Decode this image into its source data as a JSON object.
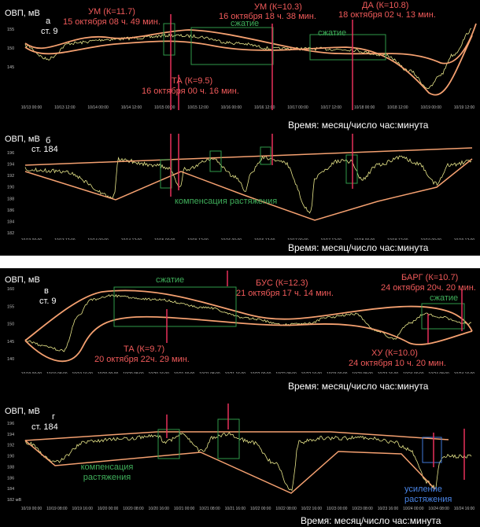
{
  "chart_data": [
    {
      "id": "a",
      "type": "line",
      "panel_letter": "а",
      "station": "ст. 9",
      "ylabel": "ОВП, мВ",
      "xlabel": "Время: месяц/число час:минута",
      "yticks": [
        "155",
        "150",
        "145"
      ],
      "xticks": [
        "10/13 00:00",
        "10/13 12:00",
        "10/14 00:00",
        "10/14 12:00",
        "10/15 00:00",
        "10/15 12:00",
        "10/16 00:00",
        "10/16 12:00",
        "10/17 00:00",
        "10/17 12:00",
        "10/18 00:00",
        "10/18 12:00",
        "10/19 00:00",
        "10/19 12:00"
      ],
      "events": [
        {
          "label": "УМ (К=11.7)",
          "time": "15 октября 08 ч. 49 мин."
        },
        {
          "label": "ТА (К=9.5)",
          "time": "16 октября 00 ч. 16 мин."
        },
        {
          "label": "УМ (К=10.3)",
          "time": "16 октября 18 ч. 38 мин."
        },
        {
          "label": "ДА (К=10.8)",
          "time": "18 октября 02 ч. 13 мин."
        }
      ],
      "annotations": [
        "сжатие",
        "сжатие"
      ]
    },
    {
      "id": "b",
      "type": "line",
      "panel_letter": "б",
      "station": "ст. 184",
      "ylabel": "ОВП, мВ",
      "xlabel": "Время: месяц/число час:минута",
      "yticks": [
        "196",
        "194",
        "192",
        "190",
        "188",
        "186",
        "184",
        "182"
      ],
      "xticks": [
        "10/13 00:00",
        "10/13 12:00",
        "10/14 00:00",
        "10/14 12:00",
        "10/15 00:00",
        "10/15 12:00",
        "10/16 00:00",
        "10/16 12:00",
        "10/17 00:00",
        "10/17 12:00",
        "10/18 00:00",
        "10/18 12:00",
        "10/19 00:00",
        "10/19 12:00"
      ],
      "annotations": [
        "компенсация растяжения"
      ]
    },
    {
      "id": "c",
      "type": "line",
      "panel_letter": "в",
      "station": "ст. 9",
      "ylabel": "ОВП, мВ",
      "xlabel": "Время: месяц/число час:минута",
      "yticks": [
        "160",
        "155",
        "150",
        "145",
        "140"
      ],
      "xticks": [
        "10/19 00:00",
        "10/19 08:00",
        "10/19 16:00",
        "10/20 00:00",
        "10/20 08:00",
        "10/20 16:00",
        "10/21 00:00",
        "10/21 08:00",
        "10/21 16:00",
        "10/22 00:00",
        "10/22 08:00",
        "10/22 16:00",
        "10/23 00:00",
        "10/23 08:00",
        "10/23 16:00",
        "10/24 00:00",
        "10/24 08:00",
        "10/24 16:00"
      ],
      "events": [
        {
          "label": "ТА (К=9.7)",
          "time": "20 октября 22ч. 29 мин."
        },
        {
          "label": "БУС (К=12.3)",
          "time": "21 октября 17 ч. 14 мин."
        },
        {
          "label": "ХУ (К=10.0)",
          "time": "24 октября 10 ч. 20 мин."
        },
        {
          "label": "БАРГ (К=10.7)",
          "time": "24 октября 20ч. 20 мин."
        }
      ],
      "annotations": [
        "сжатие",
        "сжатие"
      ]
    },
    {
      "id": "d",
      "type": "line",
      "panel_letter": "г",
      "station": "ст. 184",
      "ylabel": "ОВП, мВ",
      "xlabel": "Время: месяц/число час:минута",
      "yticks": [
        "196",
        "194",
        "192",
        "190",
        "188",
        "186",
        "184",
        "182 мВ"
      ],
      "xticks": [
        "10/19 00:00",
        "10/19 08:00",
        "10/19 16:00",
        "10/20 00:00",
        "10/20 08:00",
        "10/20 16:00",
        "10/21 00:00",
        "10/21 08:00",
        "10/21 16:00",
        "10/22 00:00",
        "10/22 08:00",
        "10/22 16:00",
        "10/23 00:00",
        "10/23 08:00",
        "10/23 16:00",
        "10/24 00:00",
        "10/24 08:00",
        "10/24 16:00"
      ],
      "annotations": [
        "компенсация растяжения",
        "усиление растяжения"
      ]
    }
  ],
  "colors": {
    "background": "#000000",
    "signal": "#e8e68a",
    "envelope": "#f4a070",
    "event_red": "#e8315a",
    "event_text": "#f05a5a",
    "box_green": "#2f9a4a",
    "annot_green": "#3fae5a",
    "annot_blue": "#4a86e8",
    "box_blue": "#3f78d8",
    "text_white": "#ffffff",
    "tick_gray": "#bbbbbb"
  }
}
